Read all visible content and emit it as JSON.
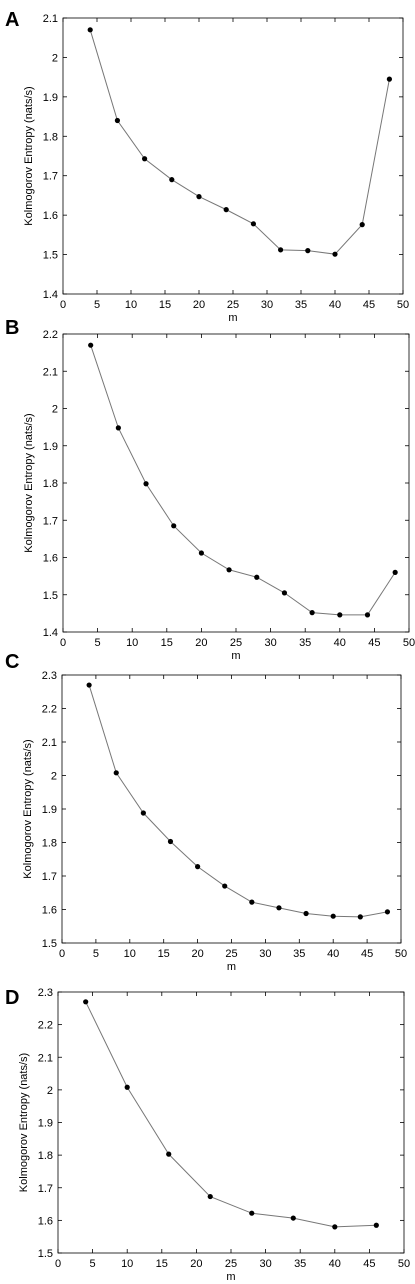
{
  "chart_data": [
    {
      "panel": "A",
      "type": "line",
      "xlabel": "m",
      "ylabel": "Kolmogorov Entropy (nats/s)",
      "xlim": [
        0,
        50
      ],
      "ylim": [
        1.4,
        2.1
      ],
      "xticks": [
        "0",
        "5",
        "10",
        "15",
        "20",
        "25",
        "30",
        "35",
        "40",
        "45",
        "50"
      ],
      "yticks": [
        "1.4",
        "1.5",
        "1.6",
        "1.7",
        "1.8",
        "1.9",
        "2",
        "2.1"
      ],
      "x": [
        4,
        8,
        12,
        16,
        20,
        24,
        28,
        32,
        36,
        40,
        44,
        48
      ],
      "y": [
        2.07,
        1.84,
        1.743,
        1.69,
        1.647,
        1.614,
        1.578,
        1.512,
        1.51,
        1.501,
        1.576,
        1.945
      ],
      "grid": false,
      "colors": {
        "line": "#777777",
        "marker": "#000000"
      }
    },
    {
      "panel": "B",
      "type": "line",
      "xlabel": "m",
      "ylabel": "Kolmogorov Entropy (nats/s)",
      "xlim": [
        0,
        50
      ],
      "ylim": [
        1.4,
        2.2
      ],
      "xticks": [
        "0",
        "5",
        "10",
        "15",
        "20",
        "25",
        "30",
        "35",
        "40",
        "45",
        "50"
      ],
      "yticks": [
        "1.4",
        "1.5",
        "1.6",
        "1.7",
        "1.8",
        "1.9",
        "2",
        "2.1",
        "2.2"
      ],
      "x": [
        4,
        8,
        12,
        16,
        20,
        24,
        28,
        32,
        36,
        40,
        44,
        48
      ],
      "y": [
        2.17,
        1.948,
        1.798,
        1.685,
        1.612,
        1.567,
        1.547,
        1.505,
        1.452,
        1.446,
        1.446,
        1.56
      ],
      "grid": false,
      "colors": {
        "line": "#777777",
        "marker": "#000000"
      }
    },
    {
      "panel": "C",
      "type": "line",
      "xlabel": "m",
      "ylabel": "Kolmogorov Entropy (nats/s)",
      "xlim": [
        0,
        50
      ],
      "ylim": [
        1.5,
        2.3
      ],
      "xticks": [
        "0",
        "5",
        "10",
        "15",
        "20",
        "25",
        "30",
        "35",
        "40",
        "45",
        "50"
      ],
      "yticks": [
        "1.5",
        "1.6",
        "1.7",
        "1.8",
        "1.9",
        "2",
        "2.1",
        "2.2",
        "2.3"
      ],
      "x": [
        4,
        8,
        12,
        16,
        20,
        24,
        28,
        32,
        36,
        40,
        44,
        48
      ],
      "y": [
        2.27,
        2.008,
        1.888,
        1.803,
        1.728,
        1.67,
        1.622,
        1.605,
        1.588,
        1.58,
        1.578,
        1.593
      ],
      "grid": false,
      "colors": {
        "line": "#777777",
        "marker": "#000000"
      }
    },
    {
      "panel": "D",
      "type": "line",
      "xlabel": "m",
      "ylabel": "Kolmogorov Entropy (nats/s)",
      "xlim": [
        0,
        50
      ],
      "ylim": [
        1.5,
        2.3
      ],
      "xticks": [
        "0",
        "5",
        "10",
        "15",
        "20",
        "25",
        "30",
        "35",
        "40",
        "45",
        "50"
      ],
      "yticks": [
        "1.5",
        "1.6",
        "1.7",
        "1.8",
        "1.9",
        "2",
        "2.1",
        "2.2",
        "2.3"
      ],
      "x": [
        4,
        10,
        16,
        22,
        28,
        34,
        40,
        46
      ],
      "y": [
        2.27,
        2.008,
        1.803,
        1.673,
        1.622,
        1.607,
        1.58,
        1.585
      ],
      "grid": false,
      "colors": {
        "line": "#777777",
        "marker": "#000000"
      }
    }
  ]
}
